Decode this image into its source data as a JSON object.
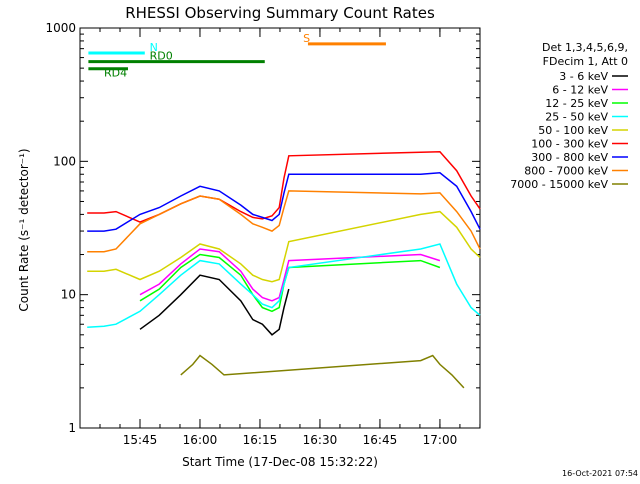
{
  "chart_data": {
    "type": "line",
    "title": "RHESSI Observing Summary Count Rates",
    "xlabel": "Start Time (17-Dec-08 15:32:22)",
    "ylabel": "Count Rate (s⁻¹ detector⁻¹)",
    "yscale": "log",
    "xlim": [
      15.5,
      17.167
    ],
    "ylim": [
      1,
      1000
    ],
    "x_ticks": [
      {
        "value": 15.75,
        "label": "15:45"
      },
      {
        "value": 16.0,
        "label": "16:00"
      },
      {
        "value": 16.25,
        "label": "16:15"
      },
      {
        "value": 16.5,
        "label": "16:30"
      },
      {
        "value": 16.75,
        "label": "16:45"
      },
      {
        "value": 17.0,
        "label": "17:00"
      }
    ],
    "y_ticks": [
      {
        "value": 1,
        "label": "1"
      },
      {
        "value": 10,
        "label": "10"
      },
      {
        "value": 100,
        "label": "100"
      },
      {
        "value": 1000,
        "label": "1000"
      }
    ],
    "legend_header": [
      "Det 1,3,4,5,6,9,",
      "FDecim 1, Att 0"
    ],
    "legend_position": "right",
    "series": [
      {
        "name": "3 - 6 keV",
        "color": "#000000",
        "x": [
          15.53,
          15.6,
          15.65,
          15.75,
          15.83,
          15.92,
          16.0,
          16.08,
          16.17,
          16.22,
          16.26,
          16.3,
          16.33,
          16.35,
          16.37
        ],
        "y": [
          null,
          null,
          null,
          5.5,
          7,
          10,
          14,
          13,
          9,
          6.5,
          6,
          5,
          5.5,
          8,
          11
        ]
      },
      {
        "name": "6 - 12 keV",
        "color": "#ff00ff",
        "x": [
          15.53,
          15.6,
          15.65,
          15.75,
          15.83,
          15.92,
          16.0,
          16.08,
          16.17,
          16.22,
          16.26,
          16.3,
          16.33,
          16.35,
          16.37,
          16.92,
          17.0,
          17.07,
          17.13,
          17.167
        ],
        "y": [
          null,
          null,
          null,
          10,
          12,
          17,
          22,
          21,
          15,
          11,
          9.5,
          9,
          9.5,
          13,
          18,
          20,
          18,
          null,
          null,
          null
        ]
      },
      {
        "name": "12 - 25 keV",
        "color": "#00ff00",
        "x": [
          15.53,
          15.6,
          15.65,
          15.75,
          15.83,
          15.92,
          16.0,
          16.08,
          16.17,
          16.22,
          16.26,
          16.3,
          16.33,
          16.35,
          16.37,
          16.92,
          17.0,
          17.07,
          17.13,
          17.167
        ],
        "y": [
          null,
          null,
          null,
          9,
          11,
          16,
          20,
          19,
          14,
          10,
          8,
          7.5,
          8,
          12,
          16,
          18,
          16,
          null,
          null,
          null
        ]
      },
      {
        "name": "25 - 50 keV",
        "color": "#00ffff",
        "x": [
          15.53,
          15.6,
          15.65,
          15.75,
          15.83,
          15.92,
          16.0,
          16.08,
          16.17,
          16.22,
          16.26,
          16.3,
          16.33,
          16.35,
          16.37,
          16.92,
          17.0,
          17.07,
          17.13,
          17.167
        ],
        "y": [
          5.7,
          5.8,
          6,
          7.5,
          10,
          14,
          18,
          17,
          12,
          10,
          8.5,
          8,
          9,
          12,
          16,
          22,
          24,
          12,
          8,
          7
        ]
      },
      {
        "name": "50 - 100 keV",
        "color": "#d4d400",
        "x": [
          15.53,
          15.6,
          15.65,
          15.75,
          15.83,
          15.92,
          16.0,
          16.08,
          16.17,
          16.22,
          16.26,
          16.3,
          16.33,
          16.35,
          16.37,
          16.92,
          17.0,
          17.07,
          17.13,
          17.167
        ],
        "y": [
          15,
          15,
          15.5,
          13,
          15,
          19,
          24,
          22,
          17,
          14,
          13,
          12.5,
          13,
          18,
          25,
          40,
          42,
          32,
          22,
          19
        ]
      },
      {
        "name": "100 - 300 keV",
        "color": "#ff0000",
        "x": [
          15.53,
          15.6,
          15.65,
          15.75,
          15.83,
          15.92,
          16.0,
          16.08,
          16.17,
          16.22,
          16.26,
          16.3,
          16.33,
          16.35,
          16.37,
          16.92,
          17.0,
          17.07,
          17.13,
          17.167
        ],
        "y": [
          41,
          41,
          42,
          35,
          40,
          48,
          55,
          52,
          42,
          38,
          37,
          39,
          45,
          75,
          110,
          117,
          118,
          85,
          55,
          44
        ]
      },
      {
        "name": "300 - 800 keV",
        "color": "#0000ff",
        "x": [
          15.53,
          15.6,
          15.65,
          15.75,
          15.83,
          15.92,
          16.0,
          16.08,
          16.17,
          16.22,
          16.26,
          16.3,
          16.33,
          16.35,
          16.37,
          16.92,
          17.0,
          17.07,
          17.13,
          17.167
        ],
        "y": [
          30,
          30,
          31,
          40,
          45,
          55,
          65,
          60,
          47,
          40,
          38,
          36,
          40,
          58,
          80,
          80,
          82,
          65,
          42,
          31
        ]
      },
      {
        "name": "800 - 7000 keV",
        "color": "#ff8000",
        "x": [
          15.53,
          15.6,
          15.65,
          15.75,
          15.83,
          15.92,
          16.0,
          16.08,
          16.17,
          16.22,
          16.26,
          16.3,
          16.33,
          16.35,
          16.37,
          16.92,
          17.0,
          17.07,
          17.13,
          17.167
        ],
        "y": [
          21,
          21,
          22,
          34,
          40,
          48,
          55,
          52,
          40,
          34,
          32,
          30,
          33,
          45,
          60,
          57,
          58,
          42,
          30,
          22
        ]
      },
      {
        "name": "7000 - 15000 keV",
        "color": "#808000",
        "x": [
          15.92,
          15.97,
          16.0,
          16.05,
          16.1,
          16.92,
          16.97,
          17.0,
          17.05,
          17.1
        ],
        "y": [
          2.5,
          3,
          3.5,
          3,
          2.5,
          3.2,
          3.5,
          3,
          2.5,
          2
        ]
      }
    ],
    "flags": [
      {
        "label": "N",
        "color": "#00ffff",
        "x0": 15.535,
        "x1": 15.77,
        "y": 650,
        "label_x": 15.79
      },
      {
        "label": "RD0",
        "color": "#008000",
        "x0": 15.535,
        "x1": 16.27,
        "y": 560,
        "label_x": 15.79
      },
      {
        "label": "RD4",
        "color": "#008000",
        "x0": 15.535,
        "x1": 15.7,
        "y": 495,
        "label_x": 15.6
      },
      {
        "label": "S",
        "color": "#ff8000",
        "x0": 16.45,
        "x1": 16.775,
        "y": 760,
        "label_x": 16.43
      }
    ]
  },
  "timestamp": "16-Oct-2021 07:54"
}
